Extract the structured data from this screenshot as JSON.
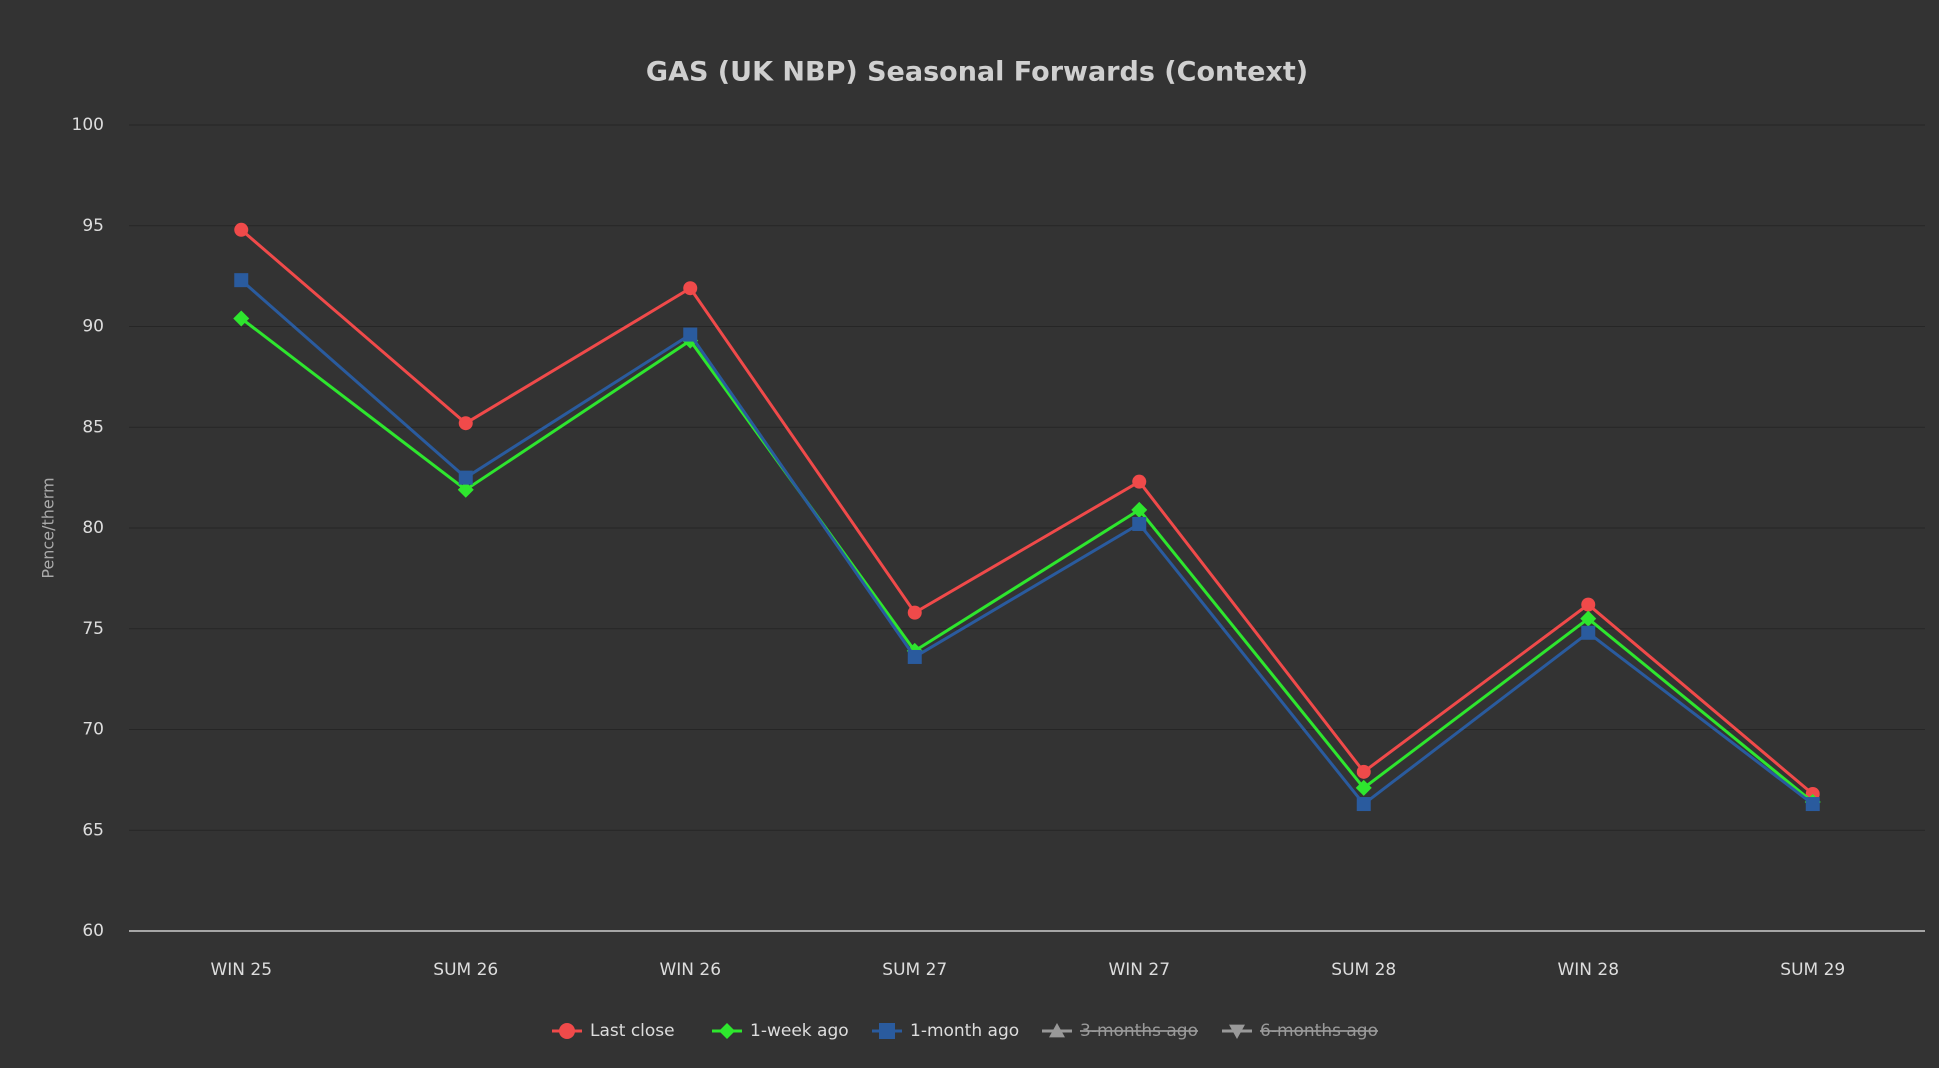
{
  "chart_data": {
    "type": "line",
    "title": "GAS (UK NBP) Seasonal Forwards (Context)",
    "y_label": "Pence/therm",
    "categories": [
      "WIN 25",
      "SUM 26",
      "WIN 26",
      "SUM 27",
      "WIN 27",
      "SUM 28",
      "WIN 28",
      "SUM 29"
    ],
    "series": [
      {
        "name": "Last close",
        "color": "#f04a4a",
        "marker": "circle",
        "values": [
          94.8,
          85.2,
          91.9,
          75.8,
          82.3,
          67.9,
          76.2,
          66.8
        ]
      },
      {
        "name": "1-week ago",
        "color": "#2ee62e",
        "marker": "diamond",
        "values": [
          90.4,
          81.9,
          89.3,
          73.9,
          80.9,
          67.1,
          75.5,
          66.4
        ]
      },
      {
        "name": "1-month ago",
        "color": "#2a5b9e",
        "marker": "square",
        "values": [
          92.3,
          82.5,
          89.6,
          73.6,
          80.2,
          66.3,
          74.8,
          66.3
        ]
      },
      {
        "name": "3-months ago",
        "color": "#999999",
        "marker": "triangle",
        "hidden": true,
        "values": [
          null,
          null,
          null,
          null,
          null,
          null,
          null,
          null
        ]
      },
      {
        "name": "6-months ago",
        "color": "#999999",
        "marker": "triangle-down",
        "hidden": true,
        "values": [
          null,
          null,
          null,
          null,
          null,
          null,
          null,
          null
        ]
      }
    ],
    "ylim": [
      60,
      100
    ],
    "yticks": [
      60,
      65,
      70,
      75,
      80,
      85,
      90,
      95,
      100
    ],
    "grid": true,
    "legend": "bottom"
  }
}
